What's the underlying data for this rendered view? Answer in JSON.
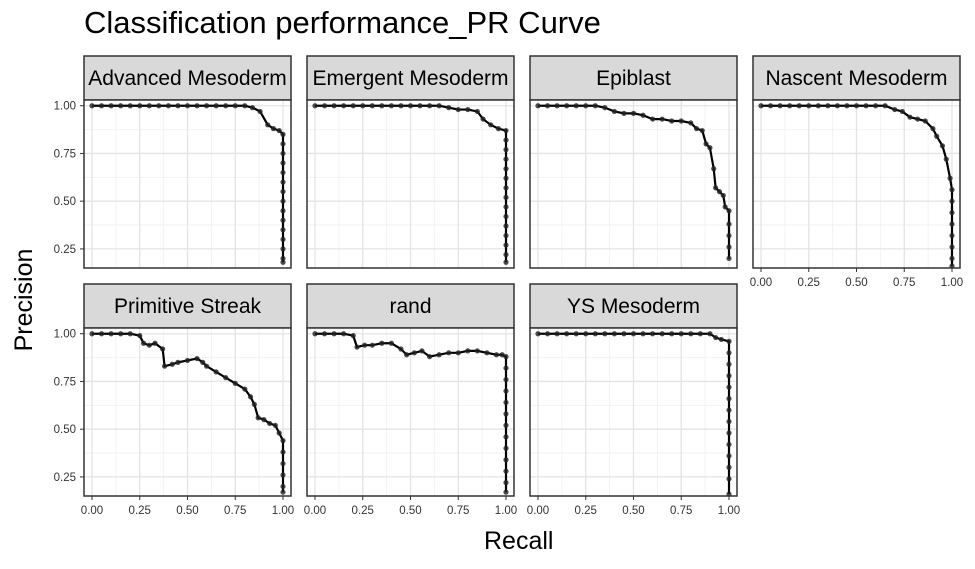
{
  "colors": {
    "strip_fill": "#d9d9d9",
    "grid_major": "#e4e4e4",
    "grid_minor": "#f2f2f2",
    "line": "#000000",
    "point": "#222222"
  },
  "chart_data": {
    "type": "line",
    "title": "Classification performance_PR Curve",
    "xlabel": "Recall",
    "ylabel": "Precision",
    "xlim": [
      0,
      1
    ],
    "ylim": [
      0.15,
      1.03
    ],
    "x_ticks": [
      0,
      0.25,
      0.5,
      0.75,
      1
    ],
    "x_tick_labels": [
      "0.00",
      "0.25",
      "0.50",
      "0.75",
      "1.00"
    ],
    "y_ticks": [
      0.25,
      0.5,
      0.75,
      1
    ],
    "y_tick_labels": [
      "0.25",
      "0.50",
      "0.75",
      "1.00"
    ],
    "facets": [
      {
        "name": "Advanced Mesoderm",
        "points": [
          [
            0,
            1
          ],
          [
            0.05,
            1
          ],
          [
            0.1,
            1
          ],
          [
            0.15,
            1
          ],
          [
            0.2,
            1
          ],
          [
            0.25,
            1
          ],
          [
            0.3,
            1
          ],
          [
            0.35,
            1
          ],
          [
            0.4,
            1
          ],
          [
            0.45,
            1
          ],
          [
            0.5,
            1
          ],
          [
            0.55,
            1
          ],
          [
            0.6,
            1
          ],
          [
            0.65,
            1
          ],
          [
            0.7,
            1
          ],
          [
            0.75,
            1
          ],
          [
            0.8,
            1
          ],
          [
            0.84,
            0.99
          ],
          [
            0.88,
            0.97
          ],
          [
            0.92,
            0.9
          ],
          [
            0.95,
            0.88
          ],
          [
            0.98,
            0.87
          ],
          [
            1,
            0.85
          ],
          [
            1,
            0.8
          ],
          [
            1,
            0.75
          ],
          [
            1,
            0.7
          ],
          [
            1,
            0.65
          ],
          [
            1,
            0.6
          ],
          [
            1,
            0.55
          ],
          [
            1,
            0.5
          ],
          [
            1,
            0.45
          ],
          [
            1,
            0.4
          ],
          [
            1,
            0.35
          ],
          [
            1,
            0.3
          ],
          [
            1,
            0.25
          ],
          [
            1,
            0.2
          ],
          [
            1,
            0.18
          ]
        ]
      },
      {
        "name": "Emergent Mesoderm",
        "points": [
          [
            0,
            1
          ],
          [
            0.05,
            1
          ],
          [
            0.1,
            1
          ],
          [
            0.15,
            1
          ],
          [
            0.2,
            1
          ],
          [
            0.25,
            1
          ],
          [
            0.3,
            1
          ],
          [
            0.35,
            1
          ],
          [
            0.4,
            1
          ],
          [
            0.45,
            1
          ],
          [
            0.5,
            1
          ],
          [
            0.55,
            1
          ],
          [
            0.6,
            1
          ],
          [
            0.65,
            1
          ],
          [
            0.7,
            0.99
          ],
          [
            0.75,
            0.98
          ],
          [
            0.8,
            0.98
          ],
          [
            0.85,
            0.97
          ],
          [
            0.88,
            0.93
          ],
          [
            0.92,
            0.9
          ],
          [
            0.96,
            0.88
          ],
          [
            1,
            0.87
          ],
          [
            1,
            0.82
          ],
          [
            1,
            0.77
          ],
          [
            1,
            0.72
          ],
          [
            1,
            0.67
          ],
          [
            1,
            0.62
          ],
          [
            1,
            0.57
          ],
          [
            1,
            0.52
          ],
          [
            1,
            0.47
          ],
          [
            1,
            0.42
          ],
          [
            1,
            0.37
          ],
          [
            1,
            0.32
          ],
          [
            1,
            0.27
          ],
          [
            1,
            0.22
          ],
          [
            1,
            0.18
          ]
        ]
      },
      {
        "name": "Epiblast",
        "points": [
          [
            0,
            1
          ],
          [
            0.05,
            1
          ],
          [
            0.1,
            1
          ],
          [
            0.15,
            1
          ],
          [
            0.2,
            1
          ],
          [
            0.25,
            1
          ],
          [
            0.3,
            1
          ],
          [
            0.35,
            0.99
          ],
          [
            0.4,
            0.97
          ],
          [
            0.45,
            0.96
          ],
          [
            0.5,
            0.96
          ],
          [
            0.55,
            0.95
          ],
          [
            0.6,
            0.93
          ],
          [
            0.65,
            0.93
          ],
          [
            0.7,
            0.92
          ],
          [
            0.75,
            0.92
          ],
          [
            0.8,
            0.91
          ],
          [
            0.83,
            0.88
          ],
          [
            0.86,
            0.87
          ],
          [
            0.88,
            0.8
          ],
          [
            0.9,
            0.78
          ],
          [
            0.92,
            0.67
          ],
          [
            0.93,
            0.57
          ],
          [
            0.95,
            0.55
          ],
          [
            0.97,
            0.53
          ],
          [
            0.98,
            0.47
          ],
          [
            1,
            0.45
          ],
          [
            1,
            0.38
          ],
          [
            1,
            0.32
          ],
          [
            1,
            0.26
          ],
          [
            1,
            0.2
          ]
        ]
      },
      {
        "name": "Nascent Mesoderm",
        "points": [
          [
            0,
            1
          ],
          [
            0.05,
            1
          ],
          [
            0.1,
            1
          ],
          [
            0.15,
            1
          ],
          [
            0.2,
            1
          ],
          [
            0.25,
            1
          ],
          [
            0.3,
            1
          ],
          [
            0.35,
            1
          ],
          [
            0.4,
            1
          ],
          [
            0.45,
            1
          ],
          [
            0.5,
            1
          ],
          [
            0.55,
            1
          ],
          [
            0.6,
            1
          ],
          [
            0.65,
            1
          ],
          [
            0.7,
            0.98
          ],
          [
            0.74,
            0.97
          ],
          [
            0.78,
            0.94
          ],
          [
            0.82,
            0.93
          ],
          [
            0.86,
            0.92
          ],
          [
            0.9,
            0.88
          ],
          [
            0.92,
            0.84
          ],
          [
            0.95,
            0.79
          ],
          [
            0.97,
            0.72
          ],
          [
            0.99,
            0.62
          ],
          [
            1,
            0.56
          ],
          [
            1,
            0.5
          ],
          [
            1,
            0.44
          ],
          [
            1,
            0.38
          ],
          [
            1,
            0.32
          ],
          [
            1,
            0.26
          ],
          [
            1,
            0.2
          ],
          [
            1,
            0.16
          ]
        ]
      },
      {
        "name": "Primitive Streak",
        "points": [
          [
            0,
            1
          ],
          [
            0.05,
            1
          ],
          [
            0.1,
            1
          ],
          [
            0.15,
            1
          ],
          [
            0.2,
            1
          ],
          [
            0.25,
            0.99
          ],
          [
            0.27,
            0.95
          ],
          [
            0.3,
            0.94
          ],
          [
            0.33,
            0.95
          ],
          [
            0.37,
            0.92
          ],
          [
            0.38,
            0.83
          ],
          [
            0.42,
            0.84
          ],
          [
            0.45,
            0.85
          ],
          [
            0.5,
            0.86
          ],
          [
            0.55,
            0.87
          ],
          [
            0.58,
            0.85
          ],
          [
            0.6,
            0.83
          ],
          [
            0.65,
            0.8
          ],
          [
            0.7,
            0.77
          ],
          [
            0.75,
            0.74
          ],
          [
            0.8,
            0.71
          ],
          [
            0.83,
            0.67
          ],
          [
            0.85,
            0.63
          ],
          [
            0.87,
            0.56
          ],
          [
            0.9,
            0.55
          ],
          [
            0.93,
            0.53
          ],
          [
            0.96,
            0.52
          ],
          [
            0.98,
            0.48
          ],
          [
            1,
            0.44
          ],
          [
            1,
            0.38
          ],
          [
            1,
            0.32
          ],
          [
            1,
            0.26
          ],
          [
            1,
            0.2
          ],
          [
            1,
            0.17
          ]
        ]
      },
      {
        "name": "rand",
        "points": [
          [
            0,
            1
          ],
          [
            0.05,
            1
          ],
          [
            0.1,
            1
          ],
          [
            0.15,
            1
          ],
          [
            0.2,
            0.99
          ],
          [
            0.22,
            0.93
          ],
          [
            0.26,
            0.94
          ],
          [
            0.3,
            0.94
          ],
          [
            0.35,
            0.95
          ],
          [
            0.4,
            0.95
          ],
          [
            0.45,
            0.92
          ],
          [
            0.48,
            0.89
          ],
          [
            0.52,
            0.9
          ],
          [
            0.56,
            0.91
          ],
          [
            0.6,
            0.88
          ],
          [
            0.65,
            0.89
          ],
          [
            0.7,
            0.9
          ],
          [
            0.75,
            0.9
          ],
          [
            0.8,
            0.91
          ],
          [
            0.85,
            0.91
          ],
          [
            0.9,
            0.9
          ],
          [
            0.95,
            0.89
          ],
          [
            0.98,
            0.89
          ],
          [
            1,
            0.88
          ],
          [
            1,
            0.82
          ],
          [
            1,
            0.76
          ],
          [
            1,
            0.7
          ],
          [
            1,
            0.64
          ],
          [
            1,
            0.58
          ],
          [
            1,
            0.52
          ],
          [
            1,
            0.46
          ],
          [
            1,
            0.4
          ],
          [
            1,
            0.34
          ],
          [
            1,
            0.28
          ],
          [
            1,
            0.22
          ],
          [
            1,
            0.17
          ]
        ]
      },
      {
        "name": "YS Mesoderm",
        "points": [
          [
            0,
            1
          ],
          [
            0.05,
            1
          ],
          [
            0.1,
            1
          ],
          [
            0.15,
            1
          ],
          [
            0.2,
            1
          ],
          [
            0.25,
            1
          ],
          [
            0.3,
            1
          ],
          [
            0.35,
            1
          ],
          [
            0.4,
            1
          ],
          [
            0.45,
            1
          ],
          [
            0.5,
            1
          ],
          [
            0.55,
            1
          ],
          [
            0.6,
            1
          ],
          [
            0.65,
            1
          ],
          [
            0.7,
            1
          ],
          [
            0.75,
            1
          ],
          [
            0.8,
            1
          ],
          [
            0.85,
            1
          ],
          [
            0.9,
            1
          ],
          [
            0.93,
            0.98
          ],
          [
            0.96,
            0.97
          ],
          [
            1,
            0.96
          ],
          [
            1,
            0.9
          ],
          [
            1,
            0.84
          ],
          [
            1,
            0.78
          ],
          [
            1,
            0.72
          ],
          [
            1,
            0.66
          ],
          [
            1,
            0.6
          ],
          [
            1,
            0.54
          ],
          [
            1,
            0.48
          ],
          [
            1,
            0.42
          ],
          [
            1,
            0.36
          ],
          [
            1,
            0.3
          ],
          [
            1,
            0.24
          ],
          [
            1,
            0.16
          ]
        ]
      }
    ]
  }
}
